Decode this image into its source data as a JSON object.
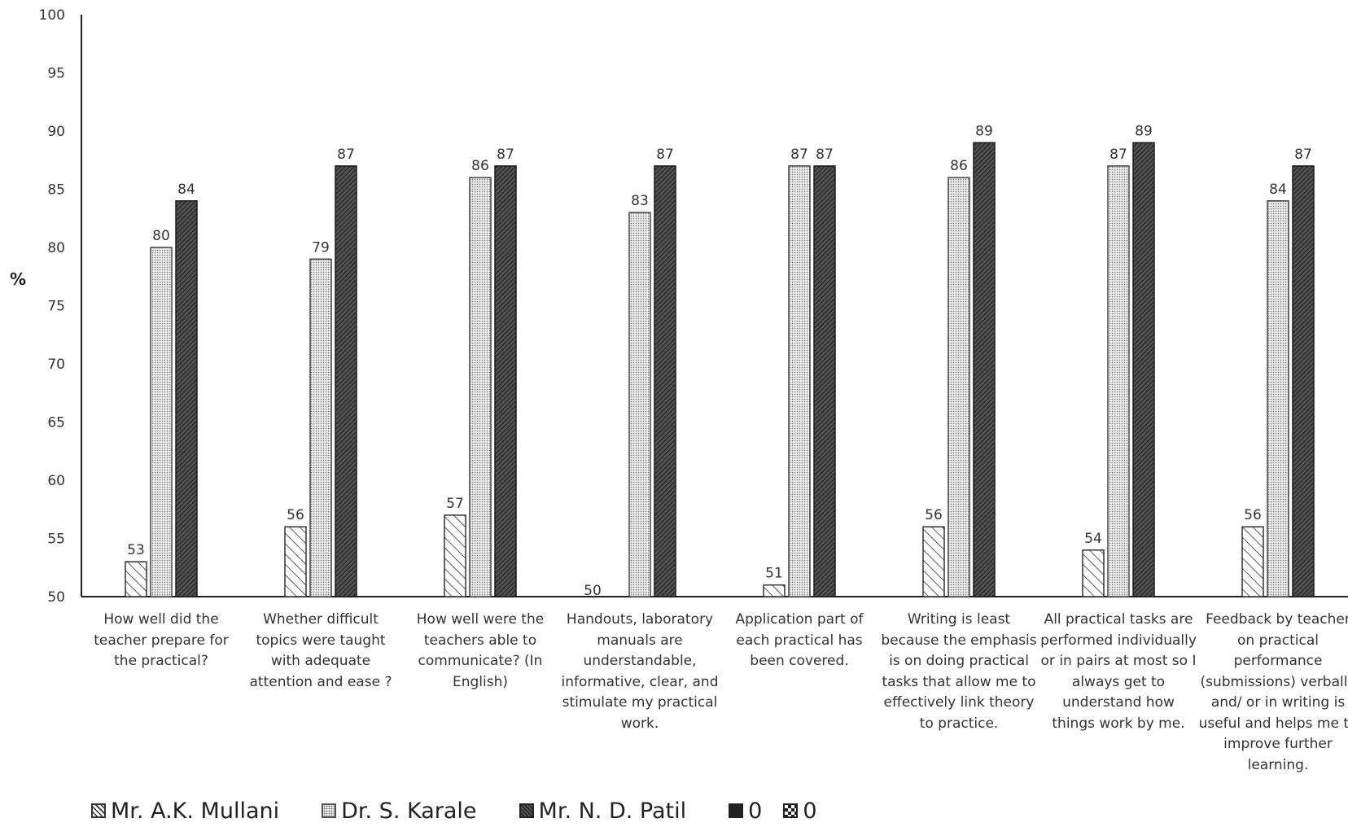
{
  "chart_data": {
    "type": "bar",
    "ylabel": "%",
    "xlabel": "",
    "ylim": [
      50,
      100
    ],
    "yticks": [
      50,
      55,
      60,
      65,
      70,
      75,
      80,
      85,
      90,
      95,
      100
    ],
    "grid": false,
    "legend_position": "bottom",
    "categories": [
      "How well did the\nteacher prepare for\nthe practical?",
      "Whether difficult\ntopics were taught\nwith adequate\nattention and ease ?",
      "How well were the\nteachers able to\ncommunicate? (In\nEnglish)",
      "Handouts, laboratory\nmanuals are\nunderstandable,\ninformative, clear, and\nstimulate my practical\nwork.",
      "Application part of\neach practical has\nbeen covered.",
      "Writing is least\nbecause the emphasis\nis on doing practical\ntasks that allow me to\neffectively link theory\nto practice.",
      "All practical tasks are\nperformed individually\nor in pairs at most so I\nalways get to\nunderstand how\nthings work by me.",
      "Feedback by teacher\non practical\nperformance\n(submissions) verbally\nand/ or in writing is\nuseful and helps me to\nimprove further\nlearning."
    ],
    "series": [
      {
        "name": "Mr. A.K. Mullani",
        "pattern": "hatch",
        "values": [
          53,
          56,
          57,
          50,
          51,
          56,
          54,
          56
        ]
      },
      {
        "name": "Dr. S. Karale",
        "pattern": "dots",
        "values": [
          80,
          79,
          86,
          83,
          87,
          86,
          87,
          84
        ]
      },
      {
        "name": "Mr. N. D. Patil",
        "pattern": "dense-hatch",
        "values": [
          84,
          87,
          87,
          87,
          87,
          89,
          89,
          87
        ]
      }
    ],
    "legend": [
      {
        "label": "Mr. A.K. Mullani",
        "pattern": "hatch"
      },
      {
        "label": "Dr. S. Karale",
        "pattern": "dots"
      },
      {
        "label": "Mr. N. D. Patil",
        "pattern": "dense-hatch"
      },
      {
        "label": "0",
        "pattern": "solid"
      },
      {
        "label": "0",
        "pattern": "check"
      }
    ]
  }
}
